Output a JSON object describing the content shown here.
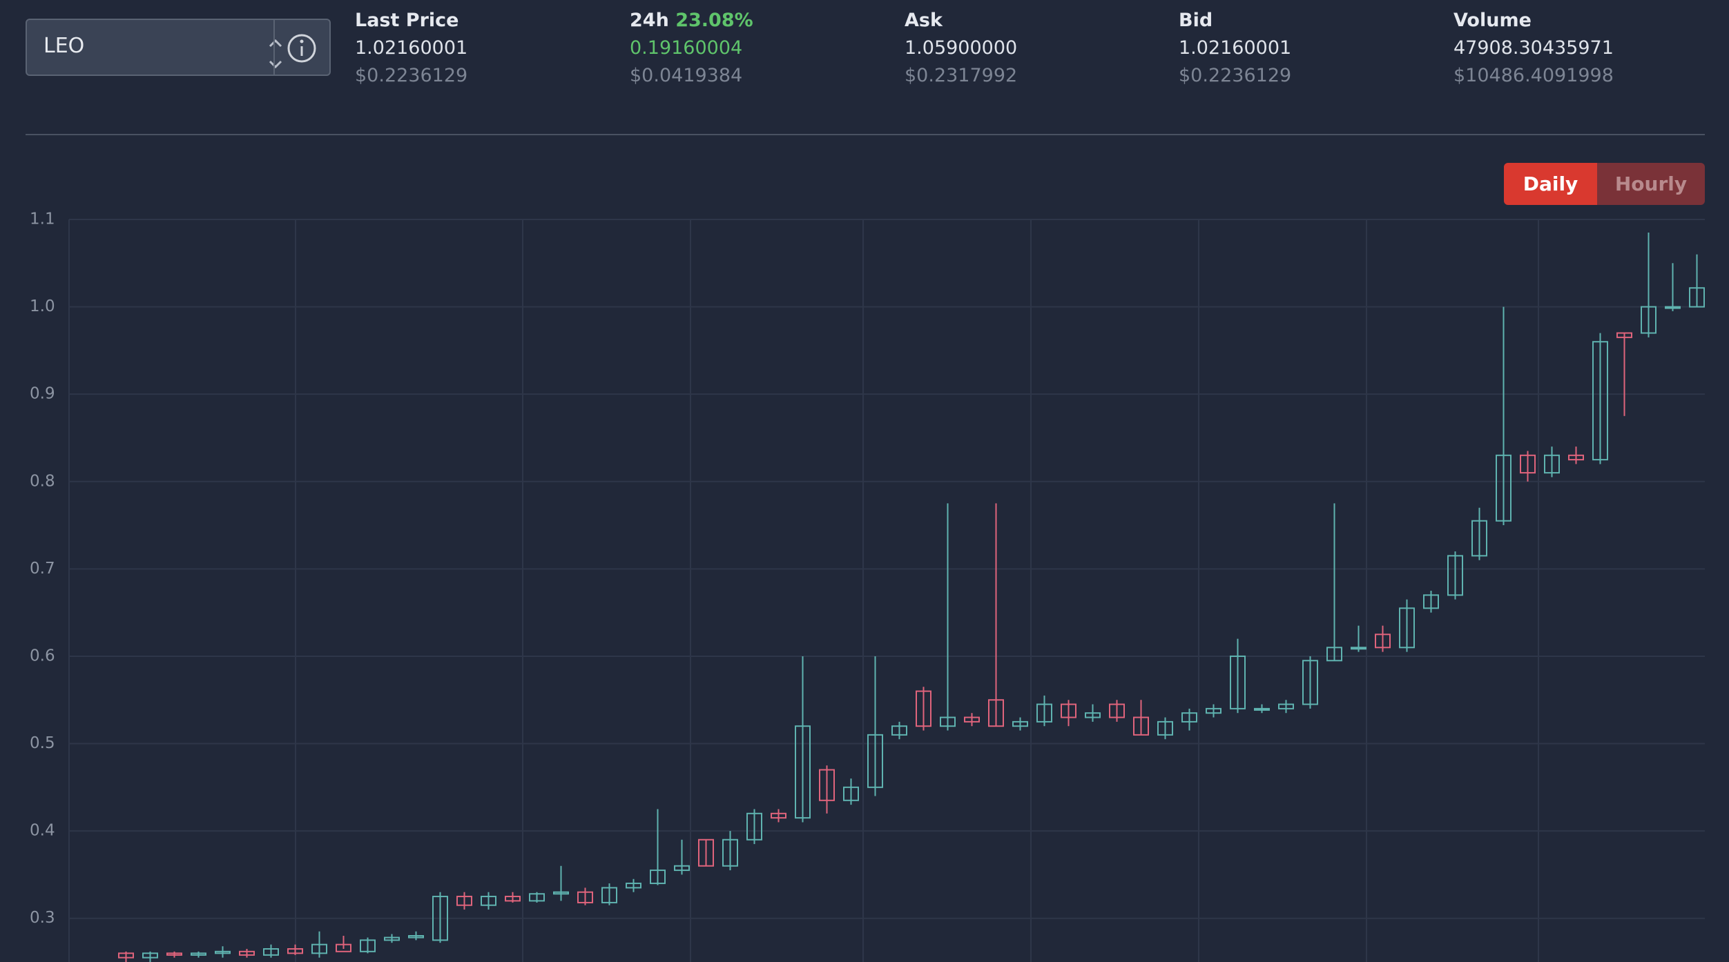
{
  "selector": {
    "value": "LEO"
  },
  "stats": [
    {
      "label": "Last Price",
      "value": "1.02160001",
      "usd": "$0.2236129"
    },
    {
      "label": "24h",
      "change": "23.08%",
      "value": "0.19160004",
      "usd": "$0.0419384"
    },
    {
      "label": "Ask",
      "value": "1.05900000",
      "usd": "$0.2317992"
    },
    {
      "label": "Bid",
      "value": "1.02160001",
      "usd": "$0.2236129"
    },
    {
      "label": "Volume",
      "value": "47908.30435971",
      "usd": "$10486.4091998"
    }
  ],
  "buttons": [
    "Daily",
    "Hourly"
  ],
  "chart_data": {
    "type": "candlestick",
    "up_color": "#5fb3b0",
    "down_color": "#e0647c",
    "grid": true,
    "ylim": [
      0.25,
      1.1
    ],
    "yticks": [
      0.3,
      0.4,
      0.5,
      0.6,
      0.7,
      0.8,
      0.9,
      {
        "value": 1,
        "label": "1.0"
      },
      1.1
    ],
    "categories": [
      null,
      null,
      null,
      null,
      null,
      null,
      null,
      null,
      null,
      null,
      null,
      null,
      null,
      null,
      null,
      null,
      null,
      null,
      null,
      null,
      null,
      null,
      null,
      null,
      null,
      null,
      null,
      null,
      null,
      null,
      null,
      null,
      null,
      null,
      null,
      null,
      null,
      null,
      null,
      null,
      null,
      null,
      null,
      null,
      null,
      null,
      null,
      null,
      null,
      null,
      null,
      null,
      null,
      null,
      null,
      null,
      null,
      null,
      null,
      null,
      null,
      null,
      null,
      null,
      null,
      null
    ],
    "open": [
      0.26,
      0.255,
      0.26,
      0.258,
      0.26,
      0.262,
      0.258,
      0.265,
      0.26,
      0.27,
      0.262,
      0.275,
      0.278,
      0.275,
      0.325,
      0.315,
      0.325,
      0.32,
      0.328,
      0.33,
      0.318,
      0.335,
      0.34,
      0.355,
      0.39,
      0.36,
      0.39,
      0.42,
      0.415,
      0.47,
      0.435,
      0.45,
      0.51,
      0.56,
      0.52,
      0.53,
      0.55,
      0.52,
      0.525,
      0.545,
      0.53,
      0.545,
      0.53,
      0.51,
      0.525,
      0.535,
      0.54,
      0.54,
      0.54,
      0.545,
      0.595,
      0.61,
      0.625,
      0.61,
      0.655,
      0.67,
      0.715,
      0.755,
      0.83,
      0.81,
      0.83,
      0.825,
      0.97,
      0.97,
      1.0,
      1.0
    ],
    "high": [
      0.262,
      0.262,
      0.262,
      0.262,
      0.268,
      0.265,
      0.27,
      0.27,
      0.285,
      0.28,
      0.278,
      0.282,
      0.285,
      0.33,
      0.33,
      0.33,
      0.33,
      0.33,
      0.36,
      0.335,
      0.34,
      0.345,
      0.425,
      0.39,
      0.39,
      0.4,
      0.425,
      0.425,
      0.6,
      0.475,
      0.46,
      0.6,
      0.525,
      0.565,
      0.775,
      0.535,
      0.775,
      0.53,
      0.555,
      0.55,
      0.545,
      0.55,
      0.55,
      0.53,
      0.54,
      0.545,
      0.62,
      0.545,
      0.55,
      0.6,
      0.775,
      0.635,
      0.635,
      0.665,
      0.675,
      0.72,
      0.77,
      1.0,
      0.835,
      0.84,
      0.84,
      0.97,
      0.97,
      1.085,
      1.05,
      1.06
    ],
    "low": [
      0.25,
      0.25,
      0.255,
      0.255,
      0.255,
      0.255,
      0.255,
      0.258,
      0.255,
      0.265,
      0.26,
      0.272,
      0.275,
      0.272,
      0.31,
      0.31,
      0.318,
      0.318,
      0.32,
      0.315,
      0.315,
      0.33,
      0.338,
      0.35,
      0.36,
      0.355,
      0.385,
      0.41,
      0.41,
      0.42,
      0.43,
      0.44,
      0.505,
      0.515,
      0.515,
      0.52,
      0.52,
      0.515,
      0.52,
      0.52,
      0.525,
      0.525,
      0.51,
      0.505,
      0.515,
      0.53,
      0.535,
      0.535,
      0.535,
      0.54,
      0.595,
      0.605,
      0.605,
      0.605,
      0.65,
      0.665,
      0.71,
      0.75,
      0.8,
      0.805,
      0.82,
      0.82,
      0.875,
      0.965,
      0.995,
      1.0
    ],
    "close": [
      0.255,
      0.26,
      0.258,
      0.26,
      0.262,
      0.258,
      0.265,
      0.26,
      0.27,
      0.262,
      0.275,
      0.278,
      0.28,
      0.325,
      0.315,
      0.325,
      0.32,
      0.328,
      0.33,
      0.318,
      0.335,
      0.34,
      0.355,
      0.36,
      0.36,
      0.39,
      0.42,
      0.415,
      0.52,
      0.435,
      0.45,
      0.51,
      0.52,
      0.52,
      0.53,
      0.525,
      0.52,
      0.525,
      0.545,
      0.53,
      0.535,
      0.53,
      0.51,
      0.525,
      0.535,
      0.54,
      0.6,
      0.54,
      0.545,
      0.595,
      0.61,
      0.61,
      0.61,
      0.655,
      0.67,
      0.715,
      0.755,
      0.83,
      0.81,
      0.83,
      0.825,
      0.96,
      0.965,
      1.0,
      1.0,
      1.0216
    ]
  }
}
